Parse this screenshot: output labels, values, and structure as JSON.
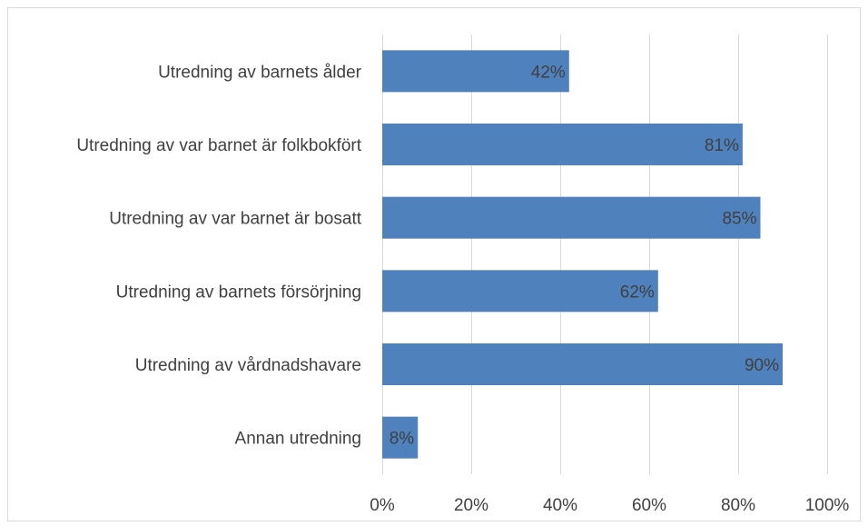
{
  "chart_data": {
    "type": "bar",
    "orientation": "horizontal",
    "categories": [
      "Utredning av barnets ålder",
      "Utredning av var barnet är folkbokfört",
      "Utredning av var barnet är bosatt",
      "Utredning av barnets försörjning",
      "Utredning av vårdnadshavare",
      "Annan utredning"
    ],
    "values": [
      42,
      81,
      85,
      62,
      90,
      8
    ],
    "data_labels": [
      "42%",
      "81%",
      "85%",
      "62%",
      "90%",
      "8%"
    ],
    "xlim": [
      0,
      100
    ],
    "x_ticks": [
      0,
      20,
      40,
      60,
      80,
      100
    ],
    "x_tick_labels": [
      "0%",
      "20%",
      "40%",
      "60%",
      "80%",
      "100%"
    ],
    "grid": "vertical",
    "legend": "none",
    "bar_color": "#4f81bd",
    "title": "",
    "xlabel": "",
    "ylabel": ""
  }
}
